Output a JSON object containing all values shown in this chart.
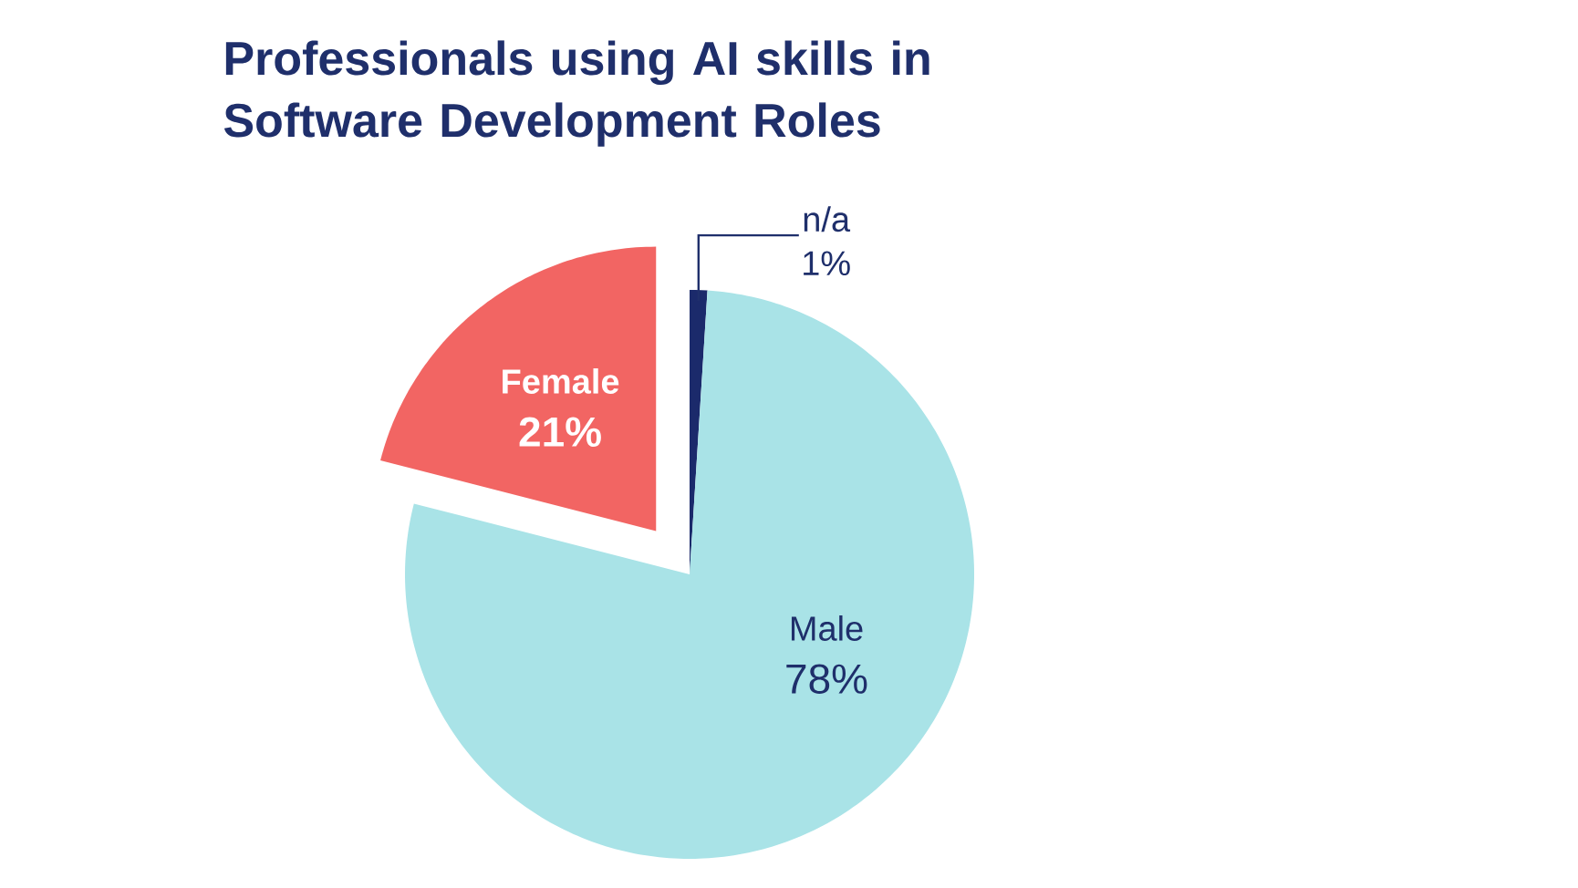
{
  "chart_data": {
    "type": "pie",
    "title": "Professionals using AI skills in Software Development Roles",
    "categories": [
      "n/a",
      "Male",
      "Female"
    ],
    "values": [
      1,
      78,
      21
    ],
    "colors": [
      "#1b2a6b",
      "#a9e3e7",
      "#f26563"
    ],
    "value_labels": [
      "1%",
      "78%",
      "21%"
    ]
  }
}
